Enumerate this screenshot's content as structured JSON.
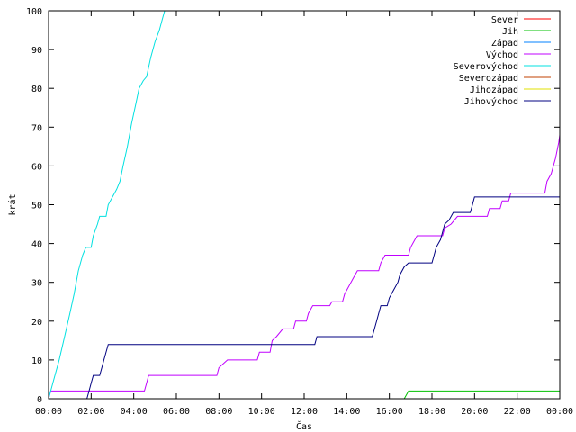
{
  "chart_data": {
    "type": "line",
    "title": "",
    "xlabel": "Čas",
    "ylabel": "krát",
    "xlim": [
      0,
      24
    ],
    "ylim": [
      0,
      100
    ],
    "grid": false,
    "legend_position": "top-right",
    "x_ticks": [
      "00:00",
      "02:00",
      "04:00",
      "06:00",
      "08:00",
      "10:00",
      "12:00",
      "14:00",
      "16:00",
      "18:00",
      "20:00",
      "22:00",
      "00:00"
    ],
    "y_ticks": [
      0,
      10,
      20,
      30,
      40,
      50,
      60,
      70,
      80,
      90,
      100
    ],
    "series": [
      {
        "name": "Sever",
        "color": "#ff0000",
        "points": []
      },
      {
        "name": "Jih",
        "color": "#00c000",
        "points": [
          [
            16.7,
            0
          ],
          [
            16.9,
            2
          ],
          [
            24,
            2
          ]
        ]
      },
      {
        "name": "Západ",
        "color": "#0080ff",
        "points": []
      },
      {
        "name": "Východ",
        "color": "#c000ff",
        "points": [
          [
            0,
            0
          ],
          [
            0.1,
            2
          ],
          [
            4.5,
            2
          ],
          [
            4.6,
            4
          ],
          [
            4.7,
            6
          ],
          [
            7.9,
            6
          ],
          [
            8.0,
            8
          ],
          [
            8.4,
            10
          ],
          [
            9.8,
            10
          ],
          [
            9.9,
            12
          ],
          [
            10.4,
            12
          ],
          [
            10.5,
            15
          ],
          [
            10.7,
            16
          ],
          [
            11.0,
            18
          ],
          [
            11.5,
            18
          ],
          [
            11.6,
            20
          ],
          [
            12.1,
            20
          ],
          [
            12.2,
            22
          ],
          [
            12.4,
            24
          ],
          [
            13.2,
            24
          ],
          [
            13.3,
            25
          ],
          [
            13.8,
            25
          ],
          [
            13.9,
            27
          ],
          [
            14.1,
            29
          ],
          [
            14.3,
            31
          ],
          [
            14.5,
            33
          ],
          [
            15.5,
            33
          ],
          [
            15.6,
            35
          ],
          [
            15.8,
            37
          ],
          [
            16.9,
            37
          ],
          [
            17.0,
            39
          ],
          [
            17.3,
            42
          ],
          [
            18.5,
            42
          ],
          [
            18.6,
            44
          ],
          [
            18.9,
            45
          ],
          [
            19.2,
            47
          ],
          [
            20.6,
            47
          ],
          [
            20.7,
            49
          ],
          [
            21.2,
            49
          ],
          [
            21.3,
            51
          ],
          [
            21.6,
            51
          ],
          [
            21.7,
            53
          ],
          [
            23.3,
            53
          ],
          [
            23.4,
            56
          ],
          [
            23.6,
            58
          ],
          [
            23.8,
            62
          ],
          [
            23.95,
            66
          ],
          [
            24,
            68
          ]
        ]
      },
      {
        "name": "Severovýchod",
        "color": "#00e0e0",
        "points": [
          [
            0,
            0
          ],
          [
            0.25,
            5
          ],
          [
            0.5,
            10
          ],
          [
            0.75,
            16
          ],
          [
            1.0,
            22
          ],
          [
            1.2,
            27
          ],
          [
            1.4,
            33
          ],
          [
            1.6,
            37
          ],
          [
            1.75,
            39
          ],
          [
            2.0,
            39
          ],
          [
            2.1,
            42
          ],
          [
            2.3,
            45
          ],
          [
            2.4,
            47
          ],
          [
            2.7,
            47
          ],
          [
            2.8,
            50
          ],
          [
            3.0,
            52
          ],
          [
            3.2,
            54
          ],
          [
            3.35,
            56
          ],
          [
            3.5,
            60
          ],
          [
            3.7,
            65
          ],
          [
            3.9,
            71
          ],
          [
            4.1,
            76
          ],
          [
            4.25,
            80
          ],
          [
            4.45,
            82
          ],
          [
            4.6,
            83
          ],
          [
            4.8,
            88
          ],
          [
            5.0,
            92
          ],
          [
            5.2,
            95
          ],
          [
            5.35,
            98
          ],
          [
            5.45,
            100
          ]
        ]
      },
      {
        "name": "Severozápad",
        "color": "#c04000",
        "points": []
      },
      {
        "name": "Jihozápad",
        "color": "#e0e000",
        "points": []
      },
      {
        "name": "Jihovýchod",
        "color": "#000080",
        "points": [
          [
            1.8,
            0
          ],
          [
            1.9,
            2
          ],
          [
            2.0,
            4
          ],
          [
            2.1,
            6
          ],
          [
            2.4,
            6
          ],
          [
            2.5,
            8
          ],
          [
            2.6,
            10
          ],
          [
            2.7,
            12
          ],
          [
            2.8,
            14
          ],
          [
            12.5,
            14
          ],
          [
            12.6,
            16
          ],
          [
            15.2,
            16
          ],
          [
            15.3,
            18
          ],
          [
            15.4,
            20
          ],
          [
            15.5,
            22
          ],
          [
            15.6,
            24
          ],
          [
            15.9,
            24
          ],
          [
            16.0,
            26
          ],
          [
            16.2,
            28
          ],
          [
            16.4,
            30
          ],
          [
            16.5,
            32
          ],
          [
            16.7,
            34
          ],
          [
            16.9,
            35
          ],
          [
            18.0,
            35
          ],
          [
            18.1,
            37
          ],
          [
            18.2,
            39
          ],
          [
            18.4,
            41
          ],
          [
            18.6,
            45
          ],
          [
            18.8,
            46
          ],
          [
            19.0,
            48
          ],
          [
            19.8,
            48
          ],
          [
            19.9,
            50
          ],
          [
            20.0,
            52
          ],
          [
            24,
            52
          ]
        ]
      }
    ]
  }
}
